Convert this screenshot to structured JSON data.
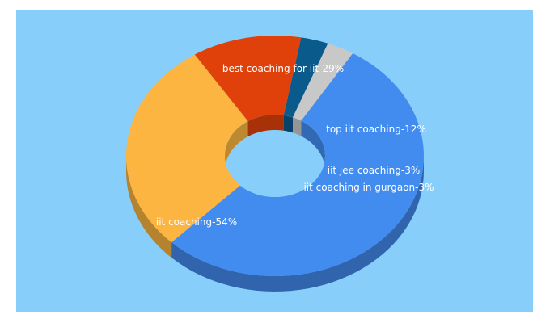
{
  "chart_data": {
    "type": "pie",
    "variant": "3d-donut",
    "title": "",
    "background_color": "#87cefa",
    "slices": [
      {
        "label": "best coaching for iit",
        "value": 29,
        "text": "best coaching for iit-29%",
        "color": "#fbb540"
      },
      {
        "label": "top iit coaching",
        "value": 12,
        "text": "top iit coaching-12%",
        "color": "#e0410a"
      },
      {
        "label": "iit jee coaching",
        "value": 3,
        "text": "iit jee coaching-3%",
        "color": "#0a5a8c"
      },
      {
        "label": "iit coaching in gurgaon",
        "value": 3,
        "text": "iit coaching in gurgaon-3%",
        "color": "#c8c8c8"
      },
      {
        "label": "iit coaching",
        "value": 54,
        "text": "iit coaching-54%",
        "color": "#428cf0"
      }
    ]
  }
}
